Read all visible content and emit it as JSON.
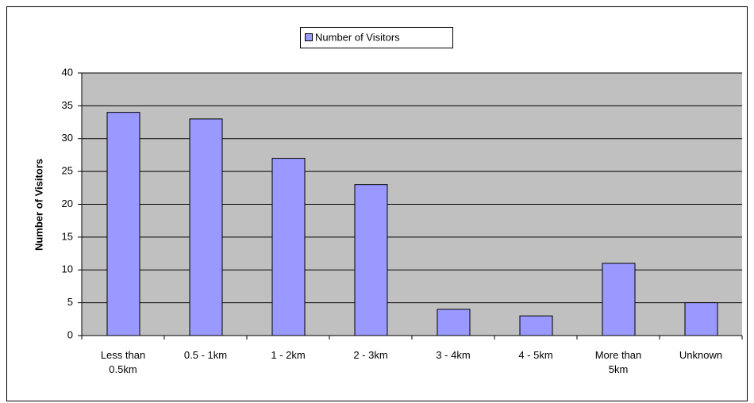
{
  "chart_data": {
    "type": "bar",
    "categories": [
      "Less than 0.5km",
      "0.5 - 1km",
      "1 - 2km",
      "2 - 3km",
      "3 - 4km",
      "4 - 5km",
      "More than 5km",
      "Unknown"
    ],
    "series": [
      {
        "name": "Number of Visitors",
        "color": "#9999ff",
        "values": [
          34,
          33,
          27,
          23,
          4,
          3,
          11,
          5
        ]
      }
    ],
    "y_label": "Number of Visitors",
    "ylim": [
      0,
      40
    ],
    "yticks": [
      0,
      5,
      10,
      15,
      20,
      25,
      30,
      35,
      40
    ],
    "grid": true,
    "legend": "top"
  }
}
